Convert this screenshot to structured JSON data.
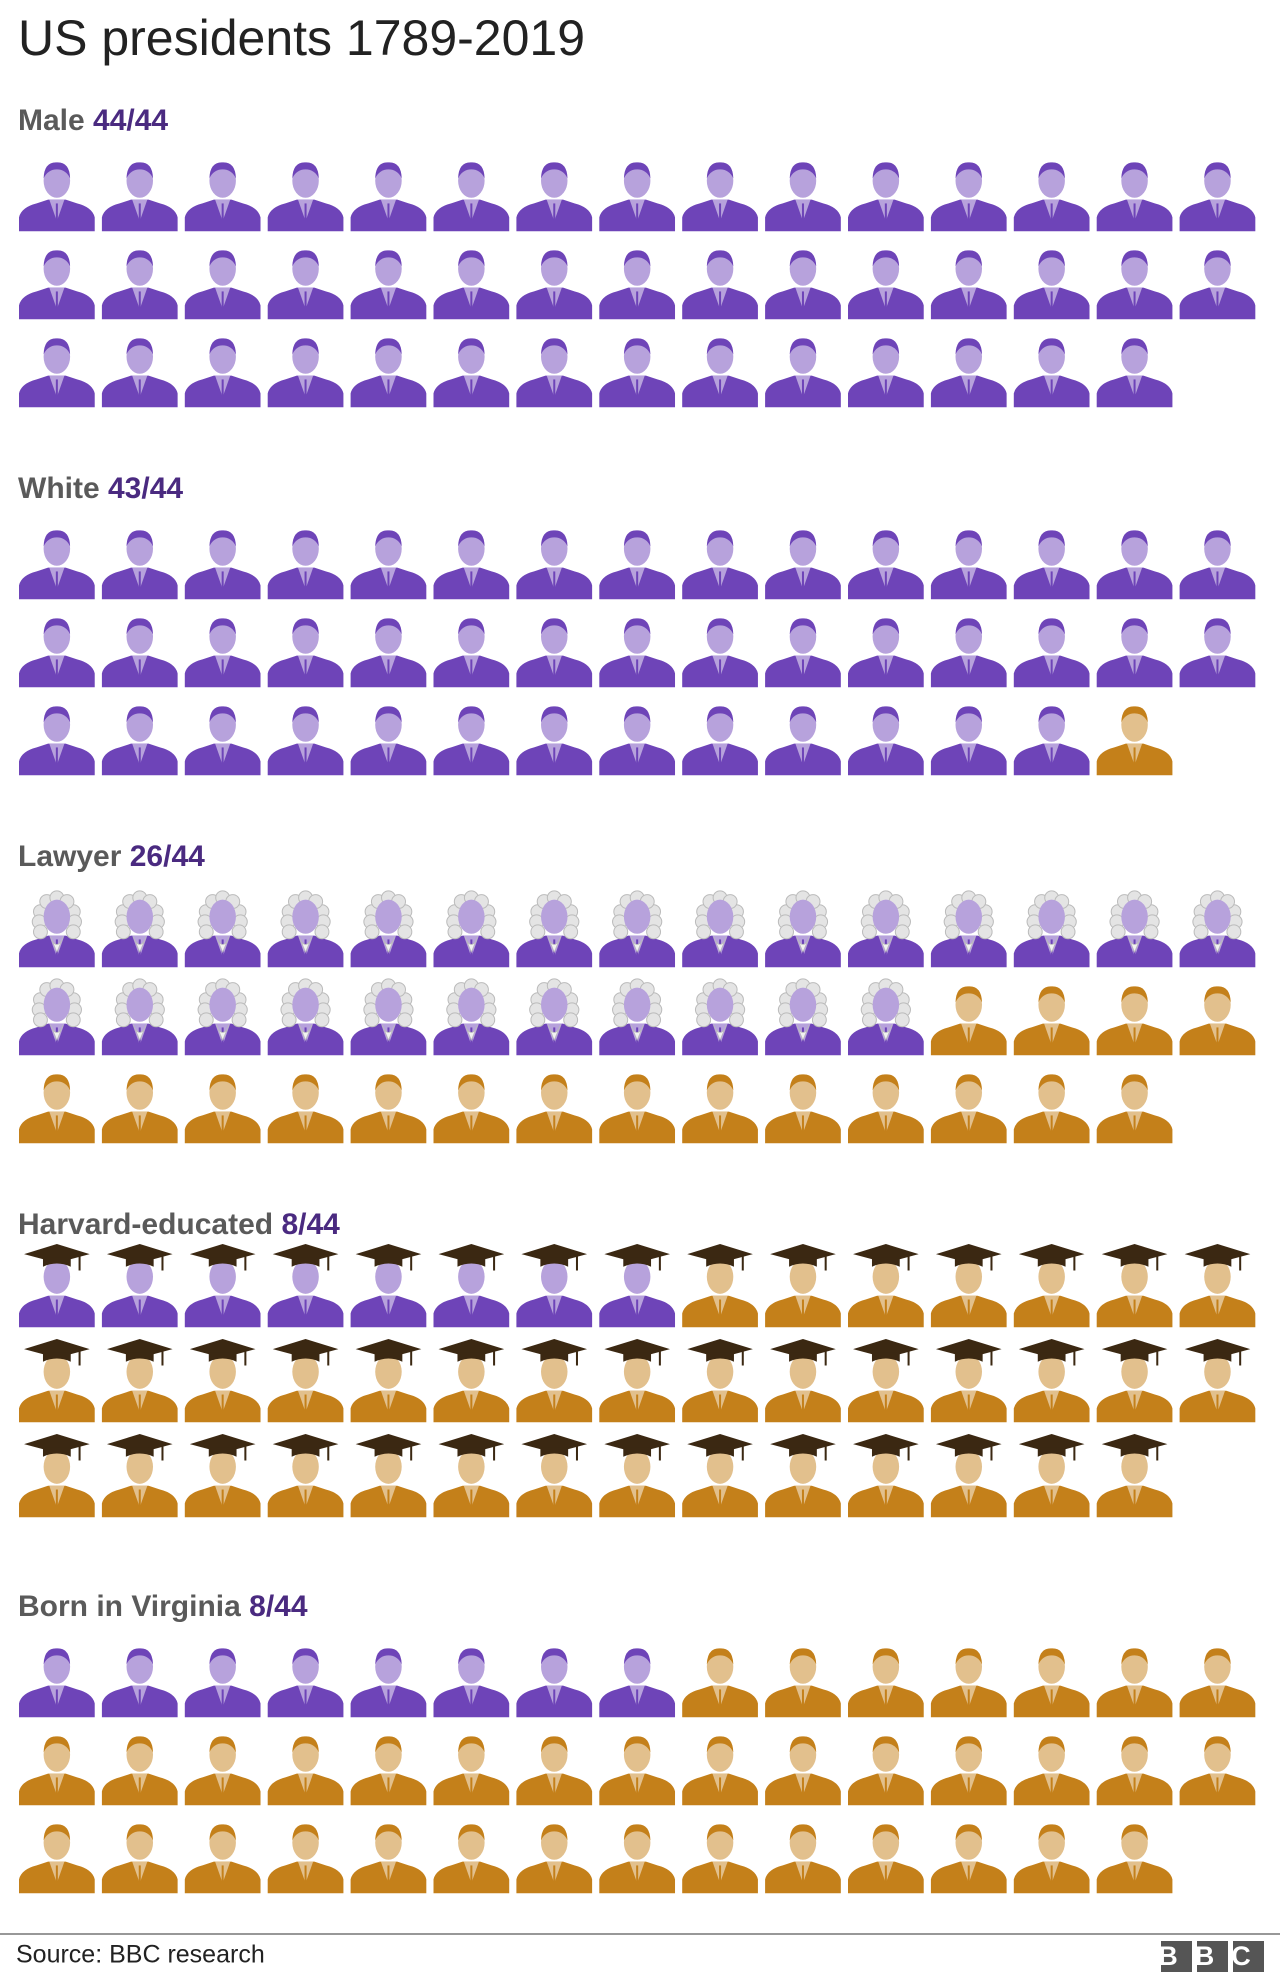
{
  "title": "US presidents 1789-2019",
  "source": "Source: BBC research",
  "logo": "BBC",
  "chart_data": [
    {
      "type": "pictogram",
      "title": "Male",
      "value_label": "44/44",
      "count": 44,
      "total": 44,
      "icon": "person",
      "color": "#6e44b8",
      "other_color": "#c4801a"
    },
    {
      "type": "pictogram",
      "title": "White",
      "value_label": "43/44",
      "count": 43,
      "total": 44,
      "icon": "person",
      "color": "#6e44b8",
      "other_color": "#c4801a"
    },
    {
      "type": "pictogram",
      "title": "Lawyer",
      "value_label": "26/44",
      "count": 26,
      "total": 44,
      "icon": "wig",
      "color": "#6e44b8",
      "other_color": "#c4801a"
    },
    {
      "type": "pictogram",
      "title": "Harvard-educated",
      "value_label": "8/44",
      "count": 8,
      "total": 44,
      "icon": "cap",
      "color": "#6e44b8",
      "other_color": "#c4801a"
    },
    {
      "type": "pictogram",
      "title": "Born in Virginia",
      "value_label": "8/44",
      "count": 8,
      "total": 44,
      "icon": "person",
      "color": "#6e44b8",
      "other_color": "#c4801a"
    }
  ]
}
